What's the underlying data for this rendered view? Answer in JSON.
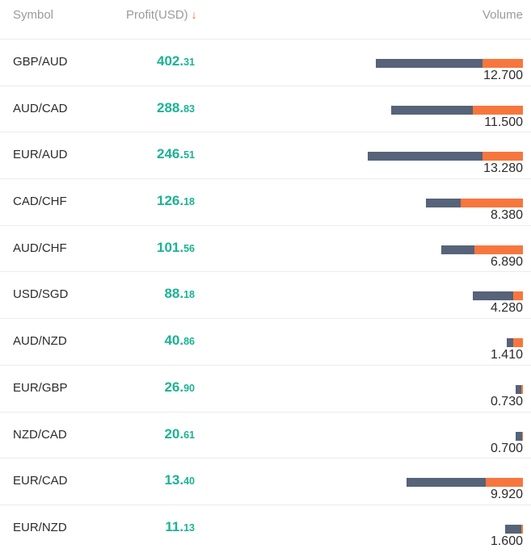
{
  "header": {
    "symbol_label": "Symbol",
    "profit_label": "Profit(USD)",
    "sort_icon": "↓",
    "volume_label": "Volume"
  },
  "colors": {
    "profit": "#1ab394",
    "sell": "#566379",
    "buy": "#f7763e",
    "sort_arrow": "#f26b3a"
  },
  "rows": [
    {
      "symbol": "GBP/AUD",
      "profit_int": "402.",
      "profit_dec": "31",
      "volume": "12.700",
      "sell_fraction": 0.55,
      "buy_fraction": 0.21
    },
    {
      "symbol": "AUD/CAD",
      "profit_int": "288.",
      "profit_dec": "83",
      "volume": "11.500",
      "sell_fraction": 0.42,
      "buy_fraction": 0.26
    },
    {
      "symbol": "EUR/AUD",
      "profit_int": "246.",
      "profit_dec": "51",
      "volume": "13.280",
      "sell_fraction": 0.59,
      "buy_fraction": 0.21
    },
    {
      "symbol": "CAD/CHF",
      "profit_int": "126.",
      "profit_dec": "18",
      "volume": "8.380",
      "sell_fraction": 0.18,
      "buy_fraction": 0.32
    },
    {
      "symbol": "AUD/CHF",
      "profit_int": "101.",
      "profit_dec": "56",
      "volume": "6.890",
      "sell_fraction": 0.17,
      "buy_fraction": 0.25
    },
    {
      "symbol": "USD/SGD",
      "profit_int": "88.",
      "profit_dec": "18",
      "volume": "4.280",
      "sell_fraction": 0.21,
      "buy_fraction": 0.05
    },
    {
      "symbol": "AUD/NZD",
      "profit_int": "40.",
      "profit_dec": "86",
      "volume": "1.410",
      "sell_fraction": 0.035,
      "buy_fraction": 0.05
    },
    {
      "symbol": "EUR/GBP",
      "profit_int": "26.",
      "profit_dec": "90",
      "volume": "0.730",
      "sell_fraction": 0.03,
      "buy_fraction": 0.01
    },
    {
      "symbol": "NZD/CAD",
      "profit_int": "20.",
      "profit_dec": "61",
      "volume": "0.700",
      "sell_fraction": 0.035,
      "buy_fraction": 0.005
    },
    {
      "symbol": "EUR/CAD",
      "profit_int": "13.",
      "profit_dec": "40",
      "volume": "9.920",
      "sell_fraction": 0.41,
      "buy_fraction": 0.19
    },
    {
      "symbol": "EUR/NZD",
      "profit_int": "11.",
      "profit_dec": "13",
      "volume": "1.600",
      "sell_fraction": 0.085,
      "buy_fraction": 0.01
    }
  ]
}
